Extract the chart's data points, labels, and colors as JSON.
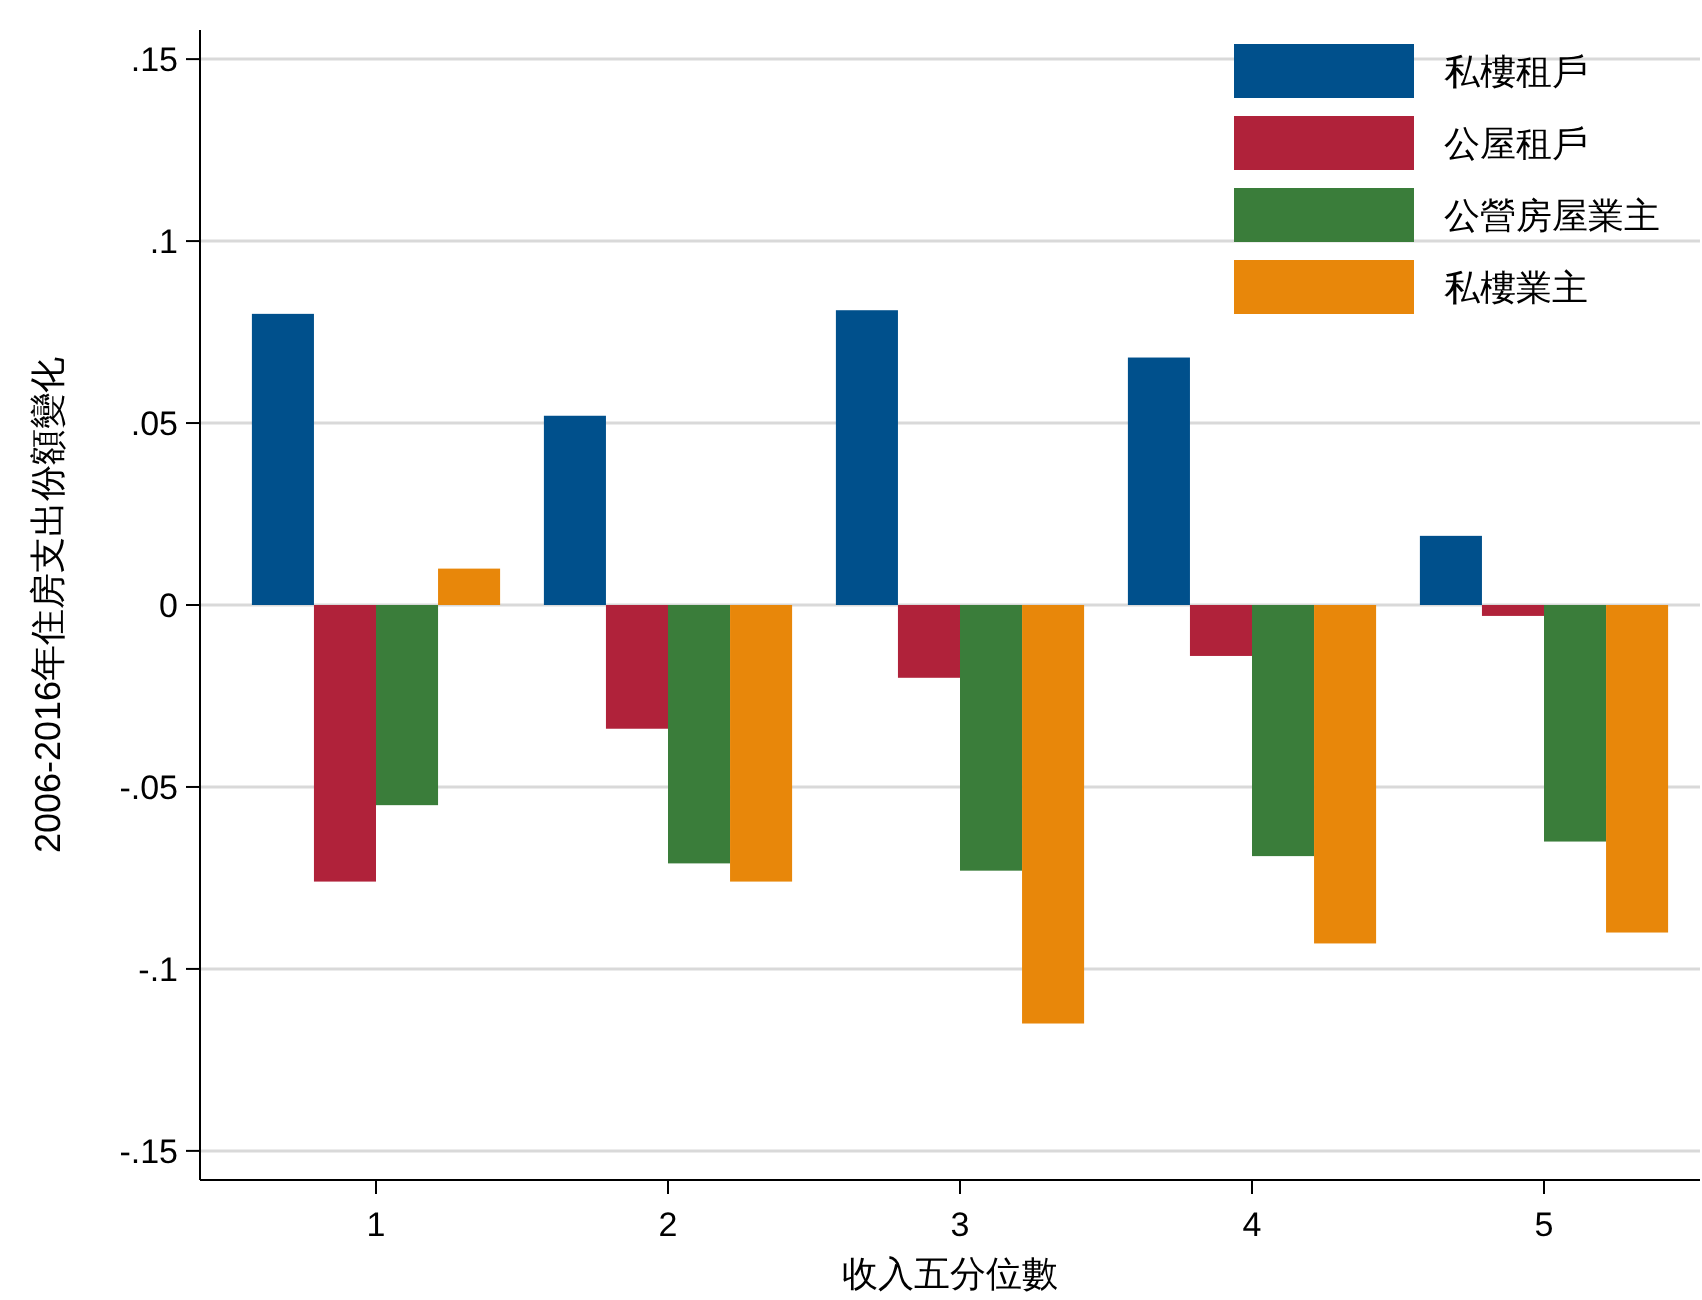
{
  "chart_data": {
    "type": "bar",
    "xlabel": "收入五分位數",
    "ylabel": "2006-2016年住房支出份額變化",
    "categories": [
      "1",
      "2",
      "3",
      "4",
      "5"
    ],
    "series": [
      {
        "name": "私樓租戶",
        "color": "#00508c",
        "values": [
          0.08,
          0.052,
          0.081,
          0.068,
          0.019
        ]
      },
      {
        "name": "公屋租戶",
        "color": "#b0223a",
        "values": [
          -0.076,
          -0.034,
          -0.02,
          -0.014,
          -0.003
        ]
      },
      {
        "name": "公營房屋業主",
        "color": "#3a7d3a",
        "values": [
          -0.055,
          -0.071,
          -0.073,
          -0.069,
          -0.065
        ]
      },
      {
        "name": "私樓業主",
        "color": "#e8870a",
        "values": [
          0.01,
          -0.076,
          -0.115,
          -0.093,
          -0.09
        ]
      }
    ],
    "ylim": [
      -0.158,
      0.158
    ],
    "yticks": [
      {
        "value": -0.15,
        "label": "-.15"
      },
      {
        "value": -0.1,
        "label": "-.1"
      },
      {
        "value": -0.05,
        "label": "-.05"
      },
      0,
      {
        "value": 0.05,
        "label": ".05"
      },
      {
        "value": 0.1,
        "label": ".1"
      },
      {
        "value": 0.15,
        "label": ".15"
      }
    ],
    "grid": "y",
    "legend": "top right"
  }
}
